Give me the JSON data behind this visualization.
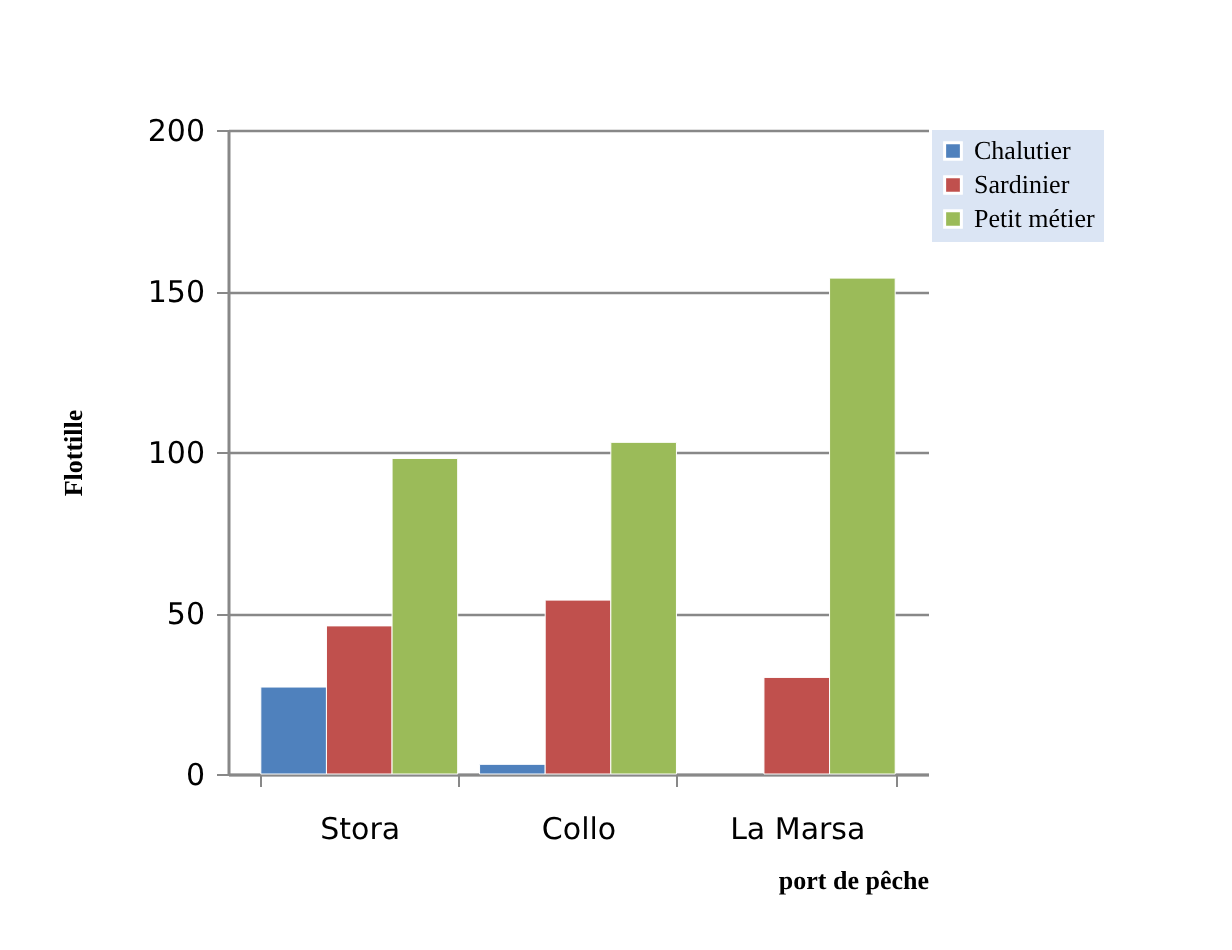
{
  "chart_data": {
    "type": "bar",
    "xlabel": "port de pêche",
    "ylabel": "Flottille",
    "categories": [
      "Stora",
      "Collo",
      "La Marsa"
    ],
    "series": [
      {
        "name": "Chalutier",
        "color": "#4f81bd",
        "values": [
          27,
          3,
          null
        ]
      },
      {
        "name": "Sardinier",
        "color": "#c0504d",
        "values": [
          46,
          54,
          30
        ]
      },
      {
        "name": "Petit métier",
        "color": "#9bbb59",
        "values": [
          98,
          103,
          154
        ]
      }
    ],
    "ylim": [
      0,
      200
    ],
    "yticks": [
      0,
      50,
      100,
      150,
      200
    ],
    "grid": "y",
    "legend": "top right"
  }
}
